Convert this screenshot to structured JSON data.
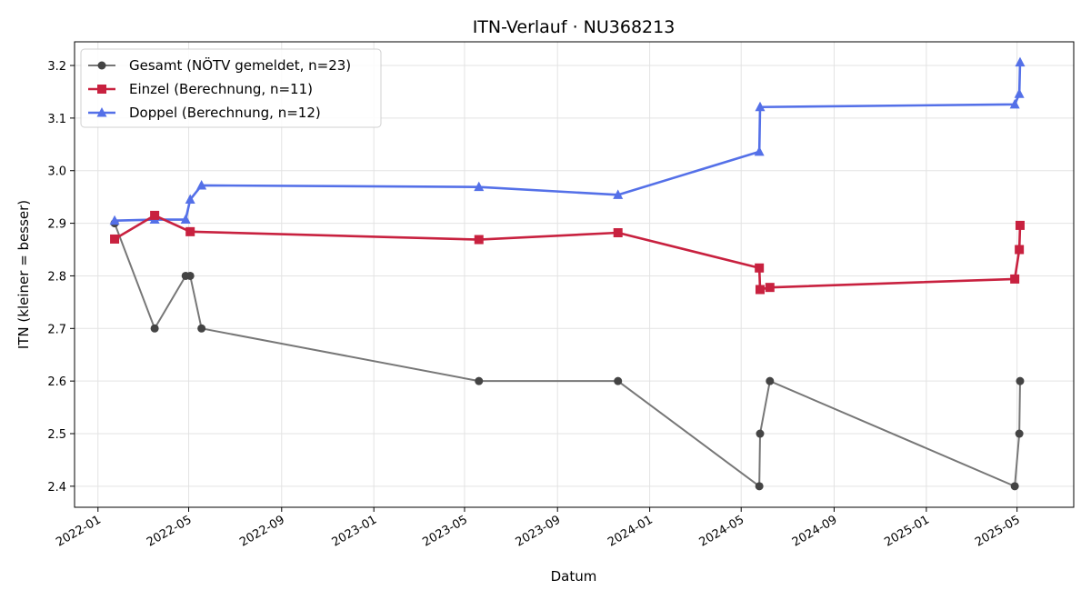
{
  "chart_data": {
    "type": "line",
    "title": "ITN-Verlauf · NU368213",
    "xlabel": "Datum",
    "ylabel": "ITN  (kleiner = besser)",
    "xlim": [
      "2021-12-01",
      "2025-07-15"
    ],
    "ylim": [
      2.36,
      3.245
    ],
    "x_ticks": [
      "2022-01",
      "2022-05",
      "2022-09",
      "2023-01",
      "2023-05",
      "2023-09",
      "2024-01",
      "2024-05",
      "2024-09",
      "2025-01",
      "2025-05"
    ],
    "y_ticks": [
      "2.4",
      "2.5",
      "2.6",
      "2.7",
      "2.8",
      "2.9",
      "3.0",
      "3.1",
      "3.2"
    ],
    "grid": true,
    "legend_position": "top-left",
    "series": [
      {
        "name": "Gesamt (NÖTV gemeldet, n=23)",
        "color": "#777777",
        "marker_color": "#444444",
        "marker": "circle",
        "points": [
          {
            "x": "2022-01-23",
            "y": 2.9
          },
          {
            "x": "2022-03-17",
            "y": 2.7
          },
          {
            "x": "2022-04-27",
            "y": 2.8
          },
          {
            "x": "2022-05-03",
            "y": 2.8
          },
          {
            "x": "2022-05-18",
            "y": 2.7
          },
          {
            "x": "2023-05-20",
            "y": 2.6
          },
          {
            "x": "2023-11-20",
            "y": 2.6
          },
          {
            "x": "2024-05-25",
            "y": 2.4
          },
          {
            "x": "2024-05-26",
            "y": 2.5
          },
          {
            "x": "2024-06-08",
            "y": 2.6
          },
          {
            "x": "2025-04-28",
            "y": 2.4
          },
          {
            "x": "2025-05-04",
            "y": 2.5
          },
          {
            "x": "2025-05-05",
            "y": 2.6
          }
        ]
      },
      {
        "name": "Einzel (Berechnung, n=11)",
        "color": "#c8213f",
        "marker": "square",
        "points": [
          {
            "x": "2022-01-23",
            "y": 2.87
          },
          {
            "x": "2022-03-17",
            "y": 2.915
          },
          {
            "x": "2022-05-03",
            "y": 2.884
          },
          {
            "x": "2023-05-20",
            "y": 2.869
          },
          {
            "x": "2023-11-20",
            "y": 2.882
          },
          {
            "x": "2024-05-25",
            "y": 2.815
          },
          {
            "x": "2024-05-26",
            "y": 2.774
          },
          {
            "x": "2024-06-08",
            "y": 2.778
          },
          {
            "x": "2025-04-28",
            "y": 2.794
          },
          {
            "x": "2025-05-04",
            "y": 2.85
          },
          {
            "x": "2025-05-05",
            "y": 2.896
          }
        ]
      },
      {
        "name": "Doppel (Berechnung, n=12)",
        "color": "#5470e8",
        "marker": "triangle",
        "points": [
          {
            "x": "2022-01-23",
            "y": 2.905
          },
          {
            "x": "2022-03-17",
            "y": 2.907
          },
          {
            "x": "2022-04-27",
            "y": 2.907
          },
          {
            "x": "2022-05-03",
            "y": 2.945
          },
          {
            "x": "2022-05-18",
            "y": 2.972
          },
          {
            "x": "2023-05-20",
            "y": 2.969
          },
          {
            "x": "2023-11-20",
            "y": 2.954
          },
          {
            "x": "2024-05-25",
            "y": 3.036
          },
          {
            "x": "2024-05-26",
            "y": 3.121
          },
          {
            "x": "2025-04-28",
            "y": 3.126
          },
          {
            "x": "2025-05-04",
            "y": 3.146
          },
          {
            "x": "2025-05-05",
            "y": 3.206
          }
        ]
      }
    ]
  }
}
